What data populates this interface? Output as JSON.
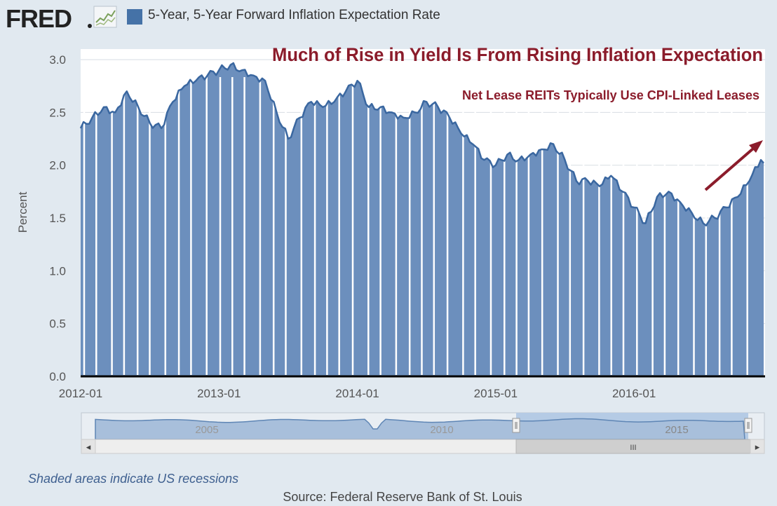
{
  "header": {
    "logo_text": "FRED",
    "legend_label": "5-Year, 5-Year Forward Inflation Expectation Rate",
    "series_color": "#4572a7"
  },
  "chart_data": {
    "type": "area",
    "ylabel": "Percent",
    "ylim": [
      0,
      3.0
    ],
    "yticks": [
      "0.0",
      "0.5",
      "1.0",
      "1.5",
      "2.0",
      "2.5",
      "3.0"
    ],
    "xticks": [
      "2012-01",
      "2013-01",
      "2014-01",
      "2015-01",
      "2016-01"
    ],
    "series": [
      {
        "points": [
          [
            "2012-01",
            2.35
          ],
          [
            "2012-02",
            2.45
          ],
          [
            "2012-03",
            2.55
          ],
          [
            "2012-04",
            2.5
          ],
          [
            "2012-05",
            2.7
          ],
          [
            "2012-06",
            2.55
          ],
          [
            "2012-07",
            2.4
          ],
          [
            "2012-08",
            2.35
          ],
          [
            "2012-09",
            2.6
          ],
          [
            "2012-10",
            2.75
          ],
          [
            "2012-11",
            2.8
          ],
          [
            "2012-12",
            2.85
          ],
          [
            "2013-01",
            2.9
          ],
          [
            "2013-02",
            2.95
          ],
          [
            "2013-03",
            2.9
          ],
          [
            "2013-04",
            2.85
          ],
          [
            "2013-05",
            2.8
          ],
          [
            "2013-06",
            2.5
          ],
          [
            "2013-07",
            2.25
          ],
          [
            "2013-08",
            2.45
          ],
          [
            "2013-09",
            2.6
          ],
          [
            "2013-10",
            2.55
          ],
          [
            "2013-11",
            2.6
          ],
          [
            "2013-12",
            2.7
          ],
          [
            "2014-01",
            2.8
          ],
          [
            "2014-02",
            2.55
          ],
          [
            "2014-03",
            2.55
          ],
          [
            "2014-04",
            2.5
          ],
          [
            "2014-05",
            2.45
          ],
          [
            "2014-06",
            2.5
          ],
          [
            "2014-07",
            2.6
          ],
          [
            "2014-08",
            2.55
          ],
          [
            "2014-09",
            2.45
          ],
          [
            "2014-10",
            2.3
          ],
          [
            "2014-11",
            2.2
          ],
          [
            "2014-12",
            2.05
          ],
          [
            "2015-01",
            2.0
          ],
          [
            "2015-02",
            2.1
          ],
          [
            "2015-03",
            2.05
          ],
          [
            "2015-04",
            2.1
          ],
          [
            "2015-05",
            2.15
          ],
          [
            "2015-06",
            2.2
          ],
          [
            "2015-07",
            2.05
          ],
          [
            "2015-08",
            1.85
          ],
          [
            "2015-09",
            1.85
          ],
          [
            "2015-10",
            1.8
          ],
          [
            "2015-11",
            1.9
          ],
          [
            "2015-12",
            1.75
          ],
          [
            "2016-01",
            1.6
          ],
          [
            "2016-02",
            1.45
          ],
          [
            "2016-03",
            1.7
          ],
          [
            "2016-04",
            1.75
          ],
          [
            "2016-05",
            1.65
          ],
          [
            "2016-06",
            1.55
          ],
          [
            "2016-07",
            1.45
          ],
          [
            "2016-08",
            1.5
          ],
          [
            "2016-09",
            1.6
          ],
          [
            "2016-10",
            1.7
          ],
          [
            "2016-11",
            1.85
          ],
          [
            "2016-12",
            2.05
          ]
        ]
      }
    ],
    "annotations": {
      "headline": "Much of Rise in Yield Is From Rising Inflation Expectation",
      "subheadline": "Net Lease REITs Typically Use CPI-Linked Leases",
      "annotation_color": "#8b1c2b"
    },
    "grid": true
  },
  "navigator": {
    "year_labels": [
      "2005",
      "2010",
      "2015"
    ],
    "scroll_left_glyph": "◂",
    "scroll_right_glyph": "▸",
    "scroll_thumb_glyph": "III"
  },
  "footer": {
    "recession_note": "Shaded areas indicate US recessions",
    "source": "Source: Federal Reserve Bank of St. Louis"
  }
}
